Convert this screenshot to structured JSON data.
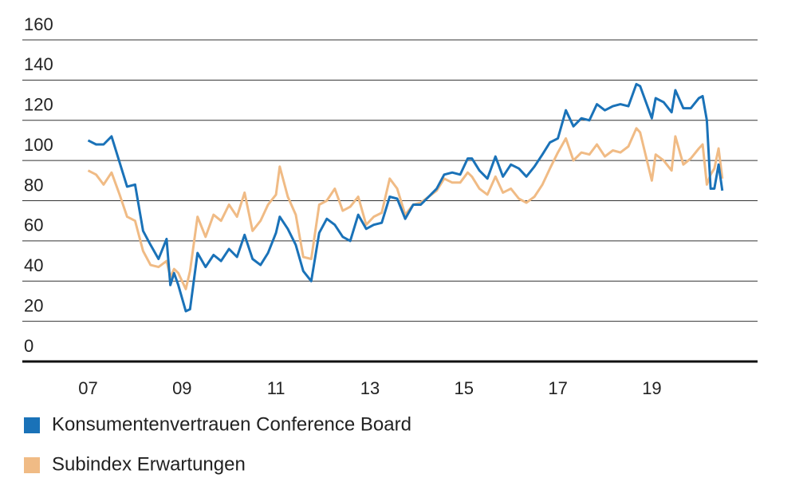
{
  "chart_data": {
    "type": "line",
    "x": [
      7,
      7.17,
      7.33,
      7.5,
      7.67,
      7.83,
      8,
      8.17,
      8.33,
      8.5,
      8.67,
      8.75,
      8.83,
      8.92,
      9.08,
      9.17,
      9.33,
      9.5,
      9.67,
      9.83,
      10,
      10.17,
      10.33,
      10.5,
      10.67,
      10.83,
      11,
      11.08,
      11.25,
      11.42,
      11.58,
      11.75,
      11.92,
      12.08,
      12.25,
      12.42,
      12.58,
      12.75,
      12.92,
      13.08,
      13.25,
      13.42,
      13.58,
      13.75,
      13.92,
      14.08,
      14.25,
      14.42,
      14.58,
      14.75,
      14.92,
      15.08,
      15.17,
      15.33,
      15.5,
      15.67,
      15.83,
      16,
      16.17,
      16.33,
      16.5,
      16.67,
      16.83,
      17,
      17.17,
      17.33,
      17.5,
      17.67,
      17.83,
      18,
      18.17,
      18.33,
      18.5,
      18.67,
      18.75,
      19,
      19.08,
      19.25,
      19.42,
      19.5,
      19.67,
      19.83,
      20,
      20.08,
      20.17,
      20.25,
      20.33,
      20.42,
      20.5
    ],
    "series": [
      {
        "name": "Konsumentenvertrauen Conference Board",
        "color": "#1a72b8",
        "values": [
          110,
          108,
          108,
          112,
          99,
          87,
          88,
          65,
          58,
          51,
          61,
          38,
          44,
          38,
          25,
          26,
          54,
          47,
          53,
          50,
          56,
          52,
          63,
          51,
          48,
          54,
          64,
          72,
          66,
          58,
          45,
          40,
          64,
          71,
          68,
          62,
          60,
          73,
          66,
          68,
          69,
          82,
          81,
          71,
          78,
          78,
          82,
          86,
          93,
          94,
          93,
          101,
          101,
          95,
          91,
          102,
          92,
          98,
          96,
          92,
          97,
          103,
          109,
          111,
          125,
          117,
          121,
          120,
          128,
          125,
          127,
          128,
          127,
          138,
          137,
          121,
          131,
          129,
          124,
          135,
          126,
          126,
          131,
          132,
          120,
          86,
          86,
          98,
          85
        ]
      },
      {
        "name": "Subindex Erwartungen",
        "color": "#f0bb85",
        "values": [
          95,
          93,
          88,
          94,
          83,
          72,
          70,
          55,
          48,
          47,
          50,
          42,
          46,
          44,
          36,
          45,
          72,
          62,
          73,
          70,
          78,
          72,
          84,
          65,
          70,
          78,
          83,
          97,
          82,
          73,
          52,
          51,
          78,
          80,
          86,
          75,
          77,
          82,
          68,
          72,
          74,
          91,
          86,
          73,
          78,
          79,
          82,
          85,
          91,
          89,
          89,
          94,
          92,
          86,
          83,
          92,
          84,
          86,
          81,
          79,
          82,
          88,
          96,
          104,
          111,
          100,
          104,
          103,
          108,
          102,
          105,
          104,
          107,
          116,
          114,
          90,
          103,
          100,
          95,
          112,
          98,
          101,
          106,
          108,
          88,
          93,
          96,
          106,
          91
        ]
      }
    ],
    "xlim": [
      5.6,
      21.25
    ],
    "xticks": [
      {
        "value": 7,
        "label": "07"
      },
      {
        "value": 9,
        "label": "09"
      },
      {
        "value": 11,
        "label": "11"
      },
      {
        "value": 13,
        "label": "13"
      },
      {
        "value": 15,
        "label": "15"
      },
      {
        "value": 17,
        "label": "17"
      },
      {
        "value": 19,
        "label": "19"
      }
    ],
    "ylim": [
      0,
      160
    ],
    "yticks": [
      0,
      20,
      40,
      60,
      80,
      100,
      120,
      140,
      160
    ],
    "grid": true,
    "legend": "bottom-left"
  }
}
